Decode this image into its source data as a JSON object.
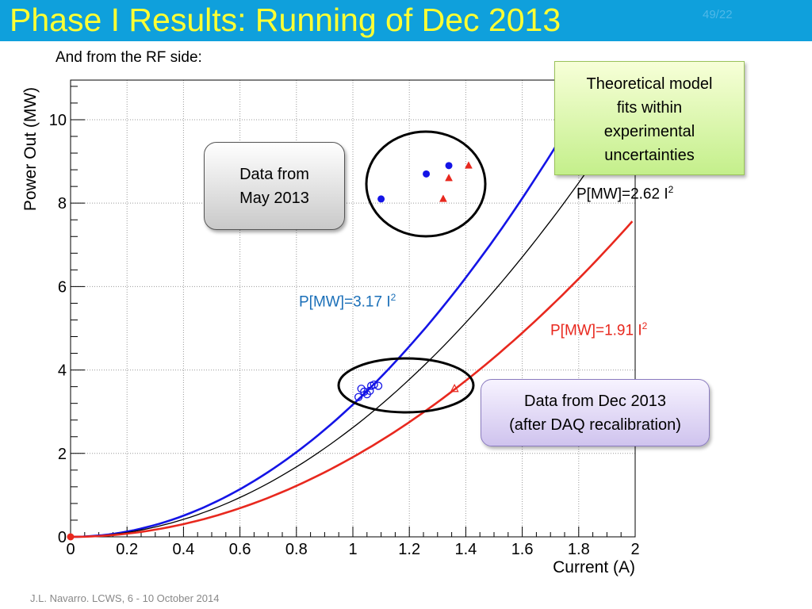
{
  "slide": {
    "title": "Phase I Results: Running of Dec 2013",
    "page_number": "49/22",
    "subtitle": "And from the RF side:",
    "footer": "J.L. Navarro. LCWS, 6 - 10 October 2014"
  },
  "callouts": {
    "may_data": [
      "Data from",
      "May 2013"
    ],
    "theory": [
      "Theoretical model",
      "fits within",
      "experimental",
      "uncertainties"
    ],
    "dec_data": [
      "Data from Dec 2013",
      "(after DAQ recalibration)"
    ]
  },
  "fit_labels": {
    "blue": {
      "text": "P[MW]=3.17 I",
      "power": "2",
      "color": "#1a6fb8"
    },
    "black": {
      "text": "P[MW]=2.62 I",
      "power": "2",
      "color": "#000000"
    },
    "red": {
      "text": "P[MW]=1.91 I",
      "power": "2",
      "color": "#e8281e"
    }
  },
  "chart_data": {
    "type": "scatter",
    "xlabel": "Current (A)",
    "ylabel": "Power Out (MW)",
    "xlim": [
      0,
      2
    ],
    "ylim": [
      0,
      10.95
    ],
    "xticks": [
      "0",
      "0.2",
      "0.4",
      "0.6",
      "0.8",
      "1",
      "1.2",
      "1.4",
      "1.6",
      "1.8",
      "2"
    ],
    "yticks": [
      "0",
      "2",
      "4",
      "6",
      "8",
      "10"
    ],
    "grid": true,
    "curves": [
      {
        "name": "P[MW]=3.17 I2",
        "coefficient": 3.17,
        "exponent": 2,
        "color": "#1414e6",
        "x_range": [
          0,
          1.8
        ]
      },
      {
        "name": "P[MW]=2.62 I2",
        "coefficient": 2.62,
        "exponent": 2,
        "color": "#000000",
        "x_range": [
          0,
          1.89
        ]
      },
      {
        "name": "P[MW]=1.91 I2",
        "coefficient": 1.91,
        "exponent": 2,
        "color": "#e8281e",
        "x_range": [
          0,
          1.99
        ]
      }
    ],
    "series": [
      {
        "marker": "filled-circle",
        "color": "#1414e6",
        "points": [
          [
            1.1,
            8.1
          ],
          [
            1.26,
            8.7
          ],
          [
            1.34,
            8.9
          ]
        ]
      },
      {
        "marker": "filled-triangle",
        "color": "#e8281e",
        "points": [
          [
            1.32,
            8.1
          ],
          [
            1.34,
            8.6
          ],
          [
            1.41,
            8.9
          ]
        ]
      },
      {
        "marker": "open-circle",
        "color": "#1414e6",
        "points": [
          [
            1.02,
            3.35
          ],
          [
            1.03,
            3.55
          ],
          [
            1.04,
            3.48
          ],
          [
            1.05,
            3.42
          ],
          [
            1.06,
            3.5
          ],
          [
            1.065,
            3.62
          ],
          [
            1.075,
            3.65
          ],
          [
            1.09,
            3.62
          ]
        ]
      },
      {
        "marker": "open-triangle",
        "color": "#e8281e",
        "points": [
          [
            1.36,
            3.55
          ]
        ]
      },
      {
        "marker": "filled-circle",
        "color": "#e8281e",
        "points": [
          [
            0,
            0
          ]
        ]
      }
    ]
  }
}
